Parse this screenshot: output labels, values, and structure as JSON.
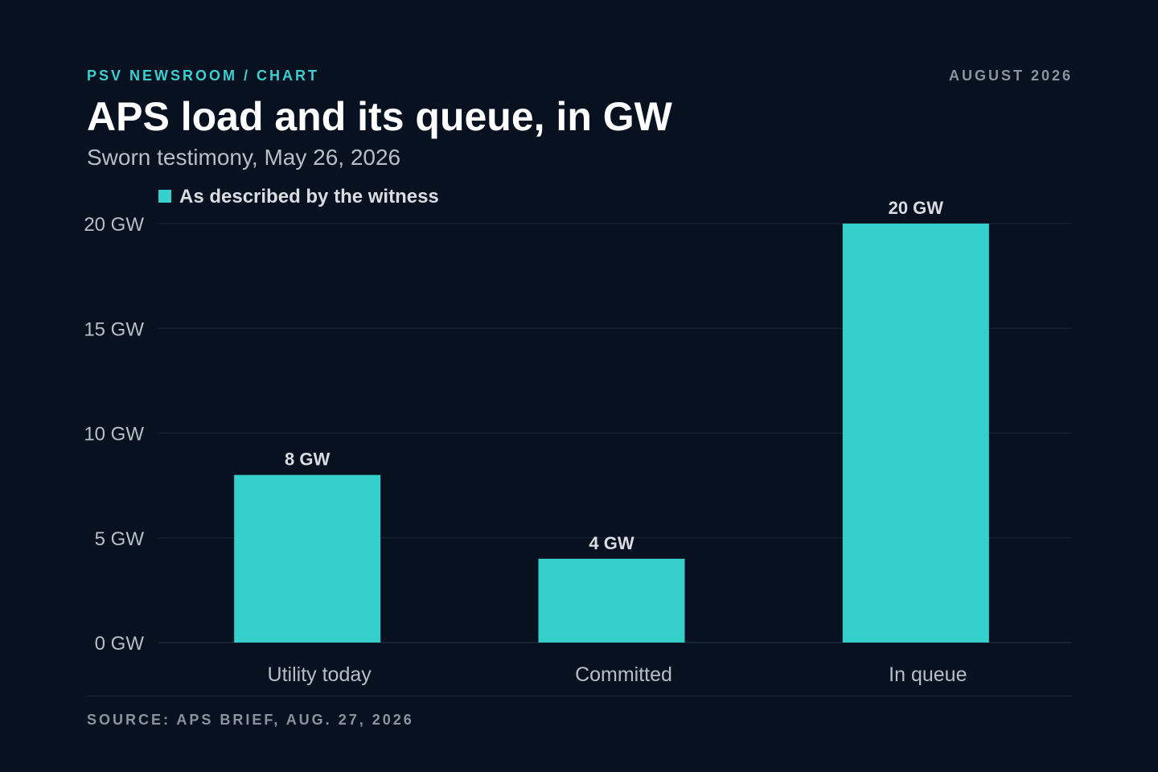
{
  "header": {
    "kicker": "PSV NEWSROOM / CHART",
    "date": "AUGUST 2026",
    "title": "APS load and its queue, in GW",
    "subtitle": "Sworn testimony, May 26, 2026"
  },
  "footer": {
    "source": "SOURCE: APS BRIEF, AUG. 27, 2026"
  },
  "colors": {
    "background": "#08111f",
    "accent": "#35d0cc",
    "grid": "#1b2533",
    "axis_text": "#b8bec6",
    "label_text": "#d9dde2"
  },
  "chart_data": {
    "type": "bar",
    "title": "APS load and its queue, in GW",
    "subtitle": "Sworn testimony, May 26, 2026",
    "xlabel": "",
    "ylabel": "",
    "categories": [
      "Utility today",
      "Committed",
      "In queue"
    ],
    "series": [
      {
        "name": "As described by the witness",
        "values": [
          8,
          4,
          20
        ],
        "labels": [
          "8 GW",
          "4 GW",
          "20 GW"
        ]
      }
    ],
    "ylim": [
      0,
      20
    ],
    "yticks": [
      0,
      5,
      10,
      15,
      20
    ],
    "ytick_labels": [
      "0 GW",
      "5 GW",
      "10 GW",
      "15 GW",
      "20 GW"
    ],
    "grid": true,
    "legend": "top-left"
  }
}
